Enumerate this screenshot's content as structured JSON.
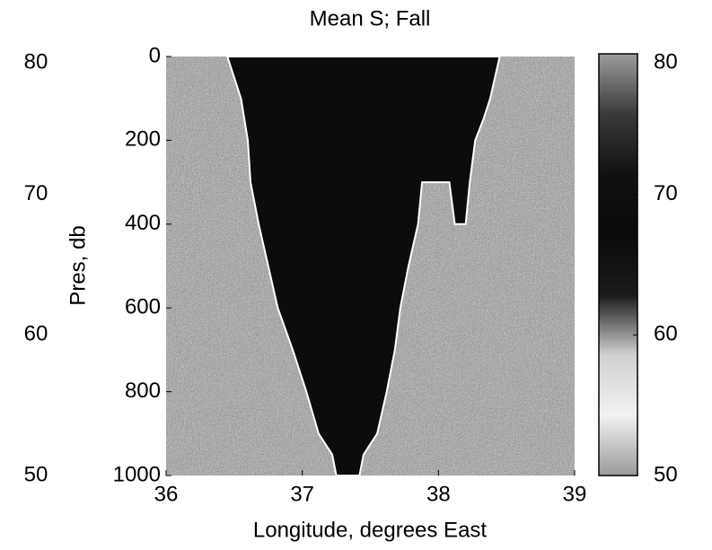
{
  "chart_data": {
    "type": "section",
    "title": "Mean S; Fall",
    "xlabel": "Longitude, degrees East",
    "ylabel": "Pres, db",
    "xlim": [
      36,
      39
    ],
    "xticks": [
      36,
      37,
      38,
      39
    ],
    "ylim": [
      0,
      1000
    ],
    "yticks": [
      0,
      200,
      400,
      600,
      800,
      1000
    ],
    "y_reversed": true,
    "background_color": "#8a8a8a",
    "water_color": "#0c0c0c",
    "water_outline": {
      "x": [
        36.45,
        36.5,
        36.55,
        36.6,
        36.62,
        36.68,
        36.75,
        36.82,
        36.93,
        37.03,
        37.12,
        37.22,
        37.25,
        37.42,
        37.45,
        37.55,
        37.62,
        37.68,
        37.72,
        37.78,
        37.85,
        37.88,
        38.08,
        38.12,
        38.2,
        38.23,
        38.27,
        38.33,
        38.38,
        38.45
      ],
      "y": [
        0,
        50,
        100,
        200,
        300,
        400,
        500,
        600,
        700,
        800,
        900,
        950,
        1000,
        1000,
        950,
        900,
        800,
        700,
        600,
        500,
        400,
        300,
        300,
        400,
        400,
        300,
        200,
        150,
        100,
        0
      ]
    },
    "clim": [
      50,
      80
    ],
    "colorbar_ticks": [
      50,
      60,
      70,
      80
    ],
    "colormap": [
      "#9a9a9a",
      "#f2f2f2",
      "#d0d0d0",
      "#1a1a1a",
      "#0a0a0a",
      "#111111",
      "#3a3a3a",
      "#9c9c9c"
    ]
  }
}
